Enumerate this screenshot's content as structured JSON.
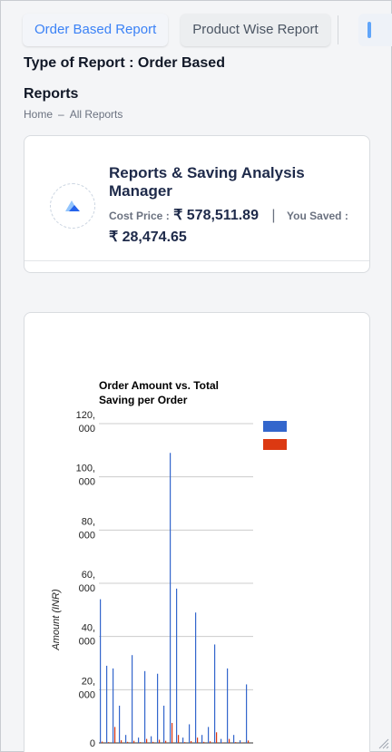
{
  "tabs": [
    {
      "label": "Order Based Report",
      "active": true
    },
    {
      "label": "Product Wise Report",
      "active": false
    }
  ],
  "report_type": "Type of Report : Order Based",
  "section_title": "Reports",
  "breadcrumb": {
    "home": "Home",
    "separator": "–",
    "current": "All Reports"
  },
  "summary": {
    "title": "Reports & Saving Analysis Manager",
    "cost_price_label": "Cost Price :",
    "cost_price_value": "₹ 578,511.89",
    "separator": "|",
    "saved_label": "You Saved :",
    "saved_value": "₹ 28,474.65"
  },
  "colors": {
    "accent": "#3b82f6",
    "order_amount": "#3366cc",
    "saving": "#dc3912"
  },
  "chart_data": {
    "type": "bar",
    "title": "Order Amount vs. Total Saving per Order",
    "ylabel": "Amount (INR)",
    "y_tick_labels": [
      [
        "0"
      ],
      [
        "20,",
        "000"
      ],
      [
        "40,",
        "000"
      ],
      [
        "60,",
        "000"
      ],
      [
        "80,",
        "000"
      ],
      [
        "100,",
        "000"
      ],
      [
        "120,",
        "000"
      ]
    ],
    "y_tick_values": [
      0,
      20000,
      40000,
      60000,
      80000,
      100000,
      120000
    ],
    "ylim": [
      0,
      120000
    ],
    "legend_position": "right",
    "series": [
      {
        "color": "#3366cc",
        "values": [
          54000,
          29000,
          28000,
          14000,
          3000,
          33000,
          2000,
          27000,
          2500,
          26000,
          14000,
          109000,
          58000,
          2000,
          7000,
          49000,
          3000,
          6000,
          37000,
          1500,
          28000,
          3000,
          1000,
          22000
        ]
      },
      {
        "color": "#dc3912",
        "values": [
          500,
          300,
          6000,
          1000,
          400,
          800,
          300,
          1500,
          400,
          1200,
          800,
          7500,
          3000,
          300,
          700,
          2000,
          400,
          600,
          4000,
          200,
          1500,
          300,
          200,
          900
        ]
      }
    ]
  }
}
